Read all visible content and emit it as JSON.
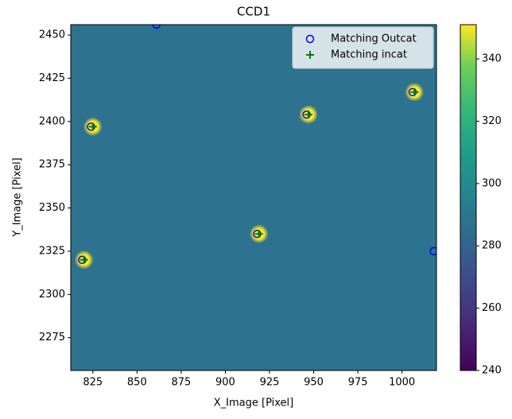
{
  "chart_data": {
    "type": "scatter",
    "title": "CCD1",
    "x_label": "X_Image [Pixel]",
    "y_label": "Y_Image [Pixel]",
    "xlim": [
      812.5,
      1019.5
    ],
    "ylim": [
      2256,
      2456
    ],
    "xticks": [
      825,
      850,
      875,
      900,
      925,
      950,
      975,
      1000
    ],
    "yticks": [
      2275,
      2300,
      2325,
      2350,
      2375,
      2400,
      2425,
      2450
    ],
    "background_level": 287,
    "series": [
      {
        "name": "Matching Outcat",
        "color": "#0000ff",
        "marker": "circle",
        "x": [
          861,
          824,
          946,
          1006,
          918,
          819,
          1018
        ],
        "values": [
          2456,
          2397,
          2404,
          2417,
          2335,
          2320,
          2325
        ]
      },
      {
        "name": "Matching incat",
        "color": "#008000",
        "marker": "plus",
        "x": [
          825,
          947,
          1007,
          919,
          820
        ],
        "values": [
          2397,
          2404,
          2417,
          2335,
          2320
        ]
      }
    ],
    "legend": "upper right",
    "colorbar": {
      "clim": [
        240,
        351
      ],
      "ticks": [
        240,
        260,
        280,
        300,
        320,
        340
      ]
    }
  }
}
